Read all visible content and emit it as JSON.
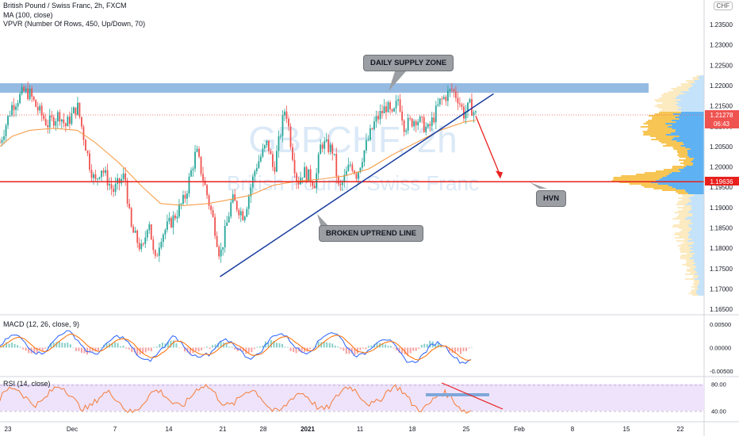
{
  "header": {
    "title": "British Pound / Swiss Franc, 2h, FXCM",
    "indicator1": "MA (100, close)",
    "indicator2": "VPVR (Number Of Rows, 450, Up/Down, 70)",
    "currency_button": "CHF"
  },
  "watermark": {
    "symbol": "GBPCHF, 2h",
    "name": "British Pound / Swiss Franc"
  },
  "annotations": {
    "supply": "DAILY SUPPLY ZONE",
    "uptrend": "BROKEN UPTREND LINE",
    "hvn": "HVN"
  },
  "price_axis": {
    "ticks": [
      "1.23500",
      "1.23000",
      "1.22500",
      "1.22000",
      "1.21500",
      "1.21000",
      "1.20500",
      "1.20000",
      "1.19500",
      "1.19000",
      "1.18500",
      "1.18000",
      "1.17500",
      "1.17000",
      "1.16500"
    ],
    "last_price": "1.21278",
    "countdown": "06:43",
    "level_tag": "1.19636"
  },
  "macd": {
    "label": "MACD (12, 26, close, 9)",
    "ticks": [
      "0.00500",
      "0.00000",
      "-0.00500"
    ]
  },
  "rsi": {
    "label": "RSI (14, close)",
    "ticks": [
      "80.00",
      "40.00"
    ]
  },
  "time_axis": [
    "23",
    "Dec",
    "7",
    "14",
    "21",
    "28",
    "2021",
    "11",
    "18",
    "25",
    "Feb",
    "8",
    "15",
    "22"
  ],
  "colors": {
    "supply_zone": "#89b4e0",
    "hvn_line": "#e8201e",
    "trendline": "#173b9e",
    "ma": "#f5953b",
    "bull": "#26a69a",
    "bear": "#ef5350",
    "macd_line": "#2962ff",
    "signal_line": "#ff6d00",
    "rsi_line": "#f57c39",
    "rsi_band": "#eee3fb",
    "last_price_tag": "#ef5350",
    "vp_up": "#55aef2",
    "vp_down": "#f7c24a"
  },
  "chart_data": {
    "type": "candlestick",
    "title": "British Pound / Swiss Franc, 2h, FXCM",
    "timeframe": "2h",
    "ylim": [
      1.165,
      1.2375
    ],
    "x_dates": [
      "Nov 23",
      "Dec",
      "Dec 7",
      "Dec 14",
      "Dec 21",
      "Dec 28",
      "2021",
      "Jan 11",
      "Jan 18",
      "Jan 25",
      "Feb",
      "Feb 8",
      "Feb 15",
      "Feb 22"
    ],
    "price_path": [
      [
        0,
        1.206
      ],
      [
        2,
        1.215
      ],
      [
        4,
        1.2185
      ],
      [
        5,
        1.218
      ],
      [
        6,
        1.215
      ],
      [
        8,
        1.2105
      ],
      [
        10,
        1.213
      ],
      [
        11,
        1.21
      ],
      [
        13,
        1.215
      ],
      [
        15,
        1.201
      ],
      [
        16,
        1.196
      ],
      [
        17,
        1.2
      ],
      [
        19,
        1.194
      ],
      [
        21,
        1.198
      ],
      [
        22,
        1.185
      ],
      [
        24,
        1.179
      ],
      [
        25,
        1.188
      ],
      [
        26,
        1.176
      ],
      [
        27,
        1.183
      ],
      [
        29,
        1.187
      ],
      [
        31,
        1.192
      ],
      [
        33,
        1.204
      ],
      [
        34,
        1.198
      ],
      [
        36,
        1.186
      ],
      [
        37,
        1.178
      ],
      [
        39,
        1.192
      ],
      [
        41,
        1.188
      ],
      [
        43,
        1.2
      ],
      [
        45,
        1.206
      ],
      [
        46,
        1.199
      ],
      [
        48,
        1.215
      ],
      [
        49,
        1.205
      ],
      [
        50,
        1.196
      ],
      [
        51,
        1.199
      ],
      [
        53,
        1.196
      ],
      [
        54,
        1.206
      ],
      [
        56,
        1.204
      ],
      [
        57,
        1.194
      ],
      [
        59,
        1.201
      ],
      [
        60,
        1.198
      ],
      [
        61,
        1.203
      ],
      [
        63,
        1.211
      ],
      [
        65,
        1.215
      ],
      [
        66,
        1.212
      ],
      [
        67,
        1.217
      ],
      [
        68,
        1.21
      ],
      [
        70,
        1.212
      ],
      [
        72,
        1.209
      ],
      [
        74,
        1.216
      ],
      [
        76,
        1.219
      ],
      [
        77,
        1.217
      ],
      [
        78,
        1.213
      ],
      [
        79,
        1.215
      ],
      [
        80,
        1.2128
      ]
    ],
    "x_domain": [
      0,
      80
    ],
    "moving_average": {
      "name": "MA (100, close)",
      "values": [
        [
          0,
          1.205
        ],
        [
          2,
          1.2075
        ],
        [
          5,
          1.209
        ],
        [
          9,
          1.2095
        ],
        [
          13,
          1.209
        ],
        [
          16,
          1.206
        ],
        [
          20,
          1.201
        ],
        [
          24,
          1.195
        ],
        [
          27,
          1.191
        ],
        [
          31,
          1.1905
        ],
        [
          35,
          1.191
        ],
        [
          38,
          1.1918
        ],
        [
          42,
          1.193
        ],
        [
          46,
          1.1955
        ],
        [
          50,
          1.1965
        ],
        [
          54,
          1.197
        ],
        [
          58,
          1.1978
        ],
        [
          62,
          1.1995
        ],
        [
          66,
          1.203
        ],
        [
          70,
          1.206
        ],
        [
          74,
          1.209
        ],
        [
          78,
          1.211
        ],
        [
          80,
          1.2115
        ]
      ]
    },
    "supply_zone": [
      1.2188,
      1.22
    ],
    "hvn_level": 1.19636,
    "last_price": 1.21278,
    "uptrend_line": [
      [
        37,
        1.173
      ],
      [
        83,
        1.218
      ]
    ],
    "projection_arrow": [
      [
        80,
        1.2125
      ],
      [
        84,
        1.1975
      ]
    ],
    "macd": {
      "label": "MACD (12, 26, close, 9)",
      "ylim": [
        -0.006,
        0.0065
      ]
    },
    "rsi": {
      "label": "RSI (14, close)",
      "ylim": [
        25,
        90
      ],
      "band": [
        40,
        80
      ]
    }
  }
}
